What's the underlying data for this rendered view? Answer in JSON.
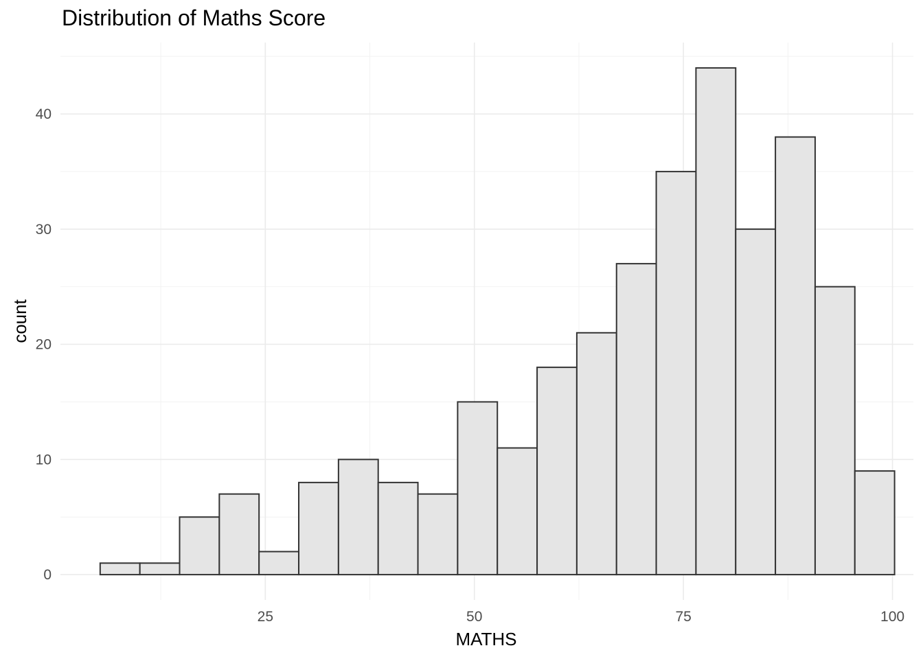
{
  "chart_data": {
    "type": "bar",
    "title": "Distribution of Maths Score",
    "xlabel": "MATHS",
    "ylabel": "count",
    "xlim": [
      0.5,
      102.5
    ],
    "ylim": [
      -2.2,
      46.2
    ],
    "x_ticks": [
      25,
      50,
      75,
      100
    ],
    "y_ticks": [
      0,
      10,
      20,
      30,
      40
    ],
    "grid": true,
    "bin_width": 4.75,
    "bins": [
      {
        "x0": 5.25,
        "x1": 10.0,
        "count": 1
      },
      {
        "x0": 10.0,
        "x1": 14.75,
        "count": 1
      },
      {
        "x0": 14.75,
        "x1": 19.5,
        "count": 5
      },
      {
        "x0": 19.5,
        "x1": 24.25,
        "count": 7
      },
      {
        "x0": 24.25,
        "x1": 29.0,
        "count": 2
      },
      {
        "x0": 29.0,
        "x1": 33.75,
        "count": 8
      },
      {
        "x0": 33.75,
        "x1": 38.5,
        "count": 10
      },
      {
        "x0": 38.5,
        "x1": 43.25,
        "count": 8
      },
      {
        "x0": 43.25,
        "x1": 48.0,
        "count": 7
      },
      {
        "x0": 48.0,
        "x1": 52.75,
        "count": 15
      },
      {
        "x0": 52.75,
        "x1": 57.5,
        "count": 11
      },
      {
        "x0": 57.5,
        "x1": 62.25,
        "count": 18
      },
      {
        "x0": 62.25,
        "x1": 67.0,
        "count": 21
      },
      {
        "x0": 67.0,
        "x1": 71.75,
        "count": 27
      },
      {
        "x0": 71.75,
        "x1": 76.5,
        "count": 35
      },
      {
        "x0": 76.5,
        "x1": 81.25,
        "count": 44
      },
      {
        "x0": 81.25,
        "x1": 86.0,
        "count": 30
      },
      {
        "x0": 86.0,
        "x1": 90.75,
        "count": 38
      },
      {
        "x0": 90.75,
        "x1": 95.5,
        "count": 25
      },
      {
        "x0": 95.5,
        "x1": 100.25,
        "count": 9
      }
    ],
    "colors": {
      "bar_fill": "#e5e5e5",
      "bar_outline": "#333333",
      "grid": "#ebebeb",
      "tick_text": "#4d4d4d"
    }
  }
}
